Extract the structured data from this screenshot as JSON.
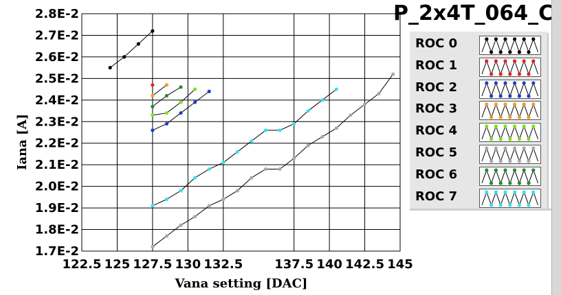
{
  "title": "P_2x4T_064_C",
  "colors": {
    "axis": "#000000",
    "legend_bg": "#e6e6e6"
  },
  "chart_data": {
    "type": "line",
    "title": "P_2x4T_064_C",
    "xlabel": "Vana setting [DAC]",
    "ylabel": "Iana [A]",
    "xlim": [
      122.5,
      145
    ],
    "ylim": [
      0.017,
      0.028
    ],
    "grid": true,
    "legend_position": "right",
    "x_ticks": [
      122.5,
      125,
      127.5,
      130,
      132.5,
      137.5,
      140,
      142.5,
      145
    ],
    "x_tick_labels": [
      "122.5",
      "125",
      "127.5",
      "130",
      "132.5",
      "137.5",
      "140",
      "142.5",
      "145"
    ],
    "y_ticks": [
      0.017,
      0.018,
      0.019,
      0.02,
      0.021,
      0.022,
      0.023,
      0.024,
      0.025,
      0.026,
      0.027,
      0.028
    ],
    "y_tick_labels": [
      "1.7E-2",
      "1.8E-2",
      "1.9E-2",
      "2.0E-2",
      "2.1E-2",
      "2.2E-2",
      "2.3E-2",
      "2.4E-2",
      "2.5E-2",
      "2.6E-2",
      "2.7E-2",
      "2.8E-2"
    ],
    "series": [
      {
        "name": "ROC 0",
        "color": "#000000",
        "x": [
          124.5,
          125.5,
          126.5,
          127.5
        ],
        "y": [
          0.0255,
          0.026,
          0.0266,
          0.0272
        ]
      },
      {
        "name": "ROC 1",
        "color": "#e8201e",
        "x": [
          127.5
        ],
        "y": [
          0.0247
        ]
      },
      {
        "name": "ROC 2",
        "color": "#1f3ec0",
        "x": [
          127.5,
          128.5,
          129.5,
          130.5,
          131.5
        ],
        "y": [
          0.0226,
          0.0229,
          0.0234,
          0.0239,
          0.0244
        ]
      },
      {
        "name": "ROC 3",
        "color": "#f59a1e",
        "x": [
          127.5,
          128.5
        ],
        "y": [
          0.0242,
          0.0247
        ]
      },
      {
        "name": "ROC 4",
        "color": "#7fe020",
        "x": [
          127.5,
          128.5,
          129.5,
          130.5
        ],
        "y": [
          0.0233,
          0.0234,
          0.0239,
          0.0245
        ]
      },
      {
        "name": "ROC 5",
        "color": "#a8a8a8",
        "x": [
          127.5,
          128.5,
          129.5,
          130.5,
          131.5,
          132.5,
          133.5,
          134.5,
          135.5,
          136.5,
          137.5,
          138.5,
          139.5,
          140.5,
          141.5,
          142.5,
          143.5,
          144.5
        ],
        "y": [
          0.0172,
          0.0177,
          0.0182,
          0.0186,
          0.0191,
          0.0194,
          0.0198,
          0.0204,
          0.0208,
          0.0208,
          0.0213,
          0.0219,
          0.0223,
          0.0227,
          0.0233,
          0.0238,
          0.0243,
          0.0252
        ]
      },
      {
        "name": "ROC 6",
        "color": "#1e8c2a",
        "x": [
          127.5,
          128.5,
          129.5
        ],
        "y": [
          0.0237,
          0.0242,
          0.0246
        ]
      },
      {
        "name": "ROC 7",
        "color": "#33e3f0",
        "x": [
          127.5,
          128.5,
          129.5,
          130.5,
          131.5,
          132.5,
          133.5,
          134.5,
          135.5,
          136.5,
          137.5,
          138.5,
          139.5,
          140.5
        ],
        "y": [
          0.0191,
          0.0194,
          0.0198,
          0.0204,
          0.0208,
          0.0211,
          0.0216,
          0.0221,
          0.0226,
          0.0226,
          0.0229,
          0.0235,
          0.024,
          0.0245
        ]
      }
    ]
  },
  "legend": {
    "items": [
      {
        "label": "ROC 0",
        "color": "#000000"
      },
      {
        "label": "ROC 1",
        "color": "#e8201e"
      },
      {
        "label": "ROC 2",
        "color": "#1f3ec0"
      },
      {
        "label": "ROC 3",
        "color": "#f59a1e"
      },
      {
        "label": "ROC 4",
        "color": "#7fe020"
      },
      {
        "label": "ROC 5",
        "color": "#a8a8a8"
      },
      {
        "label": "ROC 6",
        "color": "#1e8c2a"
      },
      {
        "label": "ROC 7",
        "color": "#33e3f0"
      }
    ]
  }
}
